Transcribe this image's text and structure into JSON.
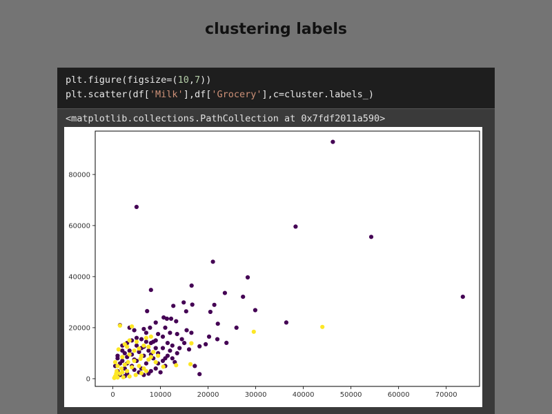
{
  "slide": {
    "title": "clustering labels"
  },
  "code": {
    "line1": {
      "a": "plt.figure(figsize=(",
      "b": "10",
      "c": ",",
      "d": "7",
      "e": "))"
    },
    "line2": {
      "a": "plt.scatter(df[",
      "b": "'Milk'",
      "c": "],df[",
      "d": "'Grocery'",
      "e": "],c=cluster.labels_)"
    }
  },
  "output": {
    "text": "<matplotlib.collections.PathCollection at 0x7fdf2011a590>"
  },
  "chart_data": {
    "type": "scatter",
    "title": "",
    "xlabel": "",
    "ylabel": "",
    "xlim": [
      -3700,
      77000
    ],
    "ylim": [
      -3000,
      97000
    ],
    "x_ticks": [
      0,
      10000,
      20000,
      30000,
      40000,
      50000,
      60000,
      70000
    ],
    "y_ticks": [
      0,
      20000,
      40000,
      60000,
      80000
    ],
    "x_tick_labels": [
      "0",
      "10000",
      "20000",
      "30000",
      "40000",
      "50000",
      "60000",
      "70000"
    ],
    "y_tick_labels": [
      "0",
      "20000",
      "40000",
      "60000",
      "80000"
    ],
    "grid": false,
    "series": [
      {
        "color": "#440154",
        "points": [
          [
            46197,
            92780
          ],
          [
            4980,
            67298
          ],
          [
            38369,
            59598
          ],
          [
            54259,
            55571
          ],
          [
            73498,
            32114
          ],
          [
            21014,
            45828
          ],
          [
            28326,
            39694
          ],
          [
            16538,
            36486
          ],
          [
            8005,
            34792
          ],
          [
            23527,
            33586
          ],
          [
            27339,
            32114
          ],
          [
            12697,
            28540
          ],
          [
            14881,
            29904
          ],
          [
            16687,
            29016
          ],
          [
            21305,
            28938
          ],
          [
            29892,
            26866
          ],
          [
            15400,
            26400
          ],
          [
            25962,
            20012
          ],
          [
            36423,
            22019
          ],
          [
            22044,
            21531
          ],
          [
            12230,
            23500
          ],
          [
            10677,
            24000
          ],
          [
            11350,
            23500
          ],
          [
            9000,
            22000
          ],
          [
            13300,
            22500
          ],
          [
            7200,
            26500
          ],
          [
            7800,
            20000
          ],
          [
            6500,
            19500
          ],
          [
            20485,
            26177
          ],
          [
            20200,
            16500
          ],
          [
            21944,
            15500
          ],
          [
            23850,
            14050
          ],
          [
            18200,
            12700
          ],
          [
            17200,
            5000
          ],
          [
            18200,
            1800
          ],
          [
            9500,
            10000
          ],
          [
            10500,
            12000
          ],
          [
            11500,
            14000
          ],
          [
            12500,
            13000
          ],
          [
            9000,
            15000
          ],
          [
            8000,
            14000
          ],
          [
            6000,
            12000
          ],
          [
            5000,
            16000
          ],
          [
            4000,
            15000
          ],
          [
            3000,
            14000
          ],
          [
            2000,
            13000
          ],
          [
            1500,
            21000
          ],
          [
            3500,
            20000
          ],
          [
            4500,
            19000
          ],
          [
            7000,
            18000
          ],
          [
            11000,
            20000
          ],
          [
            12000,
            18000
          ],
          [
            13500,
            17500
          ],
          [
            14500,
            15500
          ],
          [
            15500,
            19000
          ],
          [
            16500,
            18000
          ],
          [
            1000,
            8000
          ],
          [
            2500,
            10000
          ],
          [
            3500,
            11000
          ],
          [
            6500,
            9000
          ],
          [
            7500,
            11000
          ],
          [
            8500,
            8000
          ],
          [
            9500,
            6000
          ],
          [
            10500,
            7000
          ],
          [
            11500,
            9000
          ],
          [
            12500,
            8000
          ],
          [
            13500,
            10000
          ],
          [
            500,
            5000
          ],
          [
            1000,
            3000
          ],
          [
            1500,
            6000
          ],
          [
            2000,
            7000
          ],
          [
            2500,
            4000
          ],
          [
            3000,
            2000
          ],
          [
            4000,
            5000
          ],
          [
            5000,
            7000
          ],
          [
            6000,
            4000
          ],
          [
            7000,
            6000
          ],
          [
            8000,
            3000
          ],
          [
            9000,
            4000
          ],
          [
            10000,
            2500
          ],
          [
            11000,
            5000
          ],
          [
            3000,
            8500
          ],
          [
            4500,
            7500
          ],
          [
            5500,
            10500
          ],
          [
            6500,
            12500
          ],
          [
            14000,
            12000
          ],
          [
            15000,
            14000
          ],
          [
            16000,
            11500
          ],
          [
            19500,
            13500
          ],
          [
            9500,
            17500
          ],
          [
            10500,
            16500
          ],
          [
            12000,
            11000
          ],
          [
            13000,
            6500
          ],
          [
            1500,
            1500
          ],
          [
            2500,
            1000
          ],
          [
            5500,
            2500
          ],
          [
            6500,
            1500
          ],
          [
            7500,
            2000
          ],
          [
            4500,
            3500
          ],
          [
            8500,
            14500
          ],
          [
            5000,
            13000
          ],
          [
            6000,
            15500
          ],
          [
            7000,
            14500
          ],
          [
            4000,
            9500
          ],
          [
            3000,
            6000
          ],
          [
            2000,
            11000
          ],
          [
            1000,
            9000
          ],
          [
            11000,
            8000
          ],
          [
            9000,
            12000
          ],
          [
            8000,
            9500
          ]
        ]
      },
      {
        "color": "#fde725",
        "points": [
          [
            44000,
            20300
          ],
          [
            29600,
            18400
          ],
          [
            16500,
            13900
          ],
          [
            16300,
            5700
          ],
          [
            13300,
            5300
          ],
          [
            10600,
            4700
          ],
          [
            4000,
            20500
          ],
          [
            1200,
            11500
          ],
          [
            1500,
            20800
          ],
          [
            8000,
            16500
          ],
          [
            7000,
            16000
          ],
          [
            3000,
            12500
          ],
          [
            5500,
            11800
          ],
          [
            8500,
            10500
          ],
          [
            6000,
            9000
          ],
          [
            3500,
            9500
          ],
          [
            2000,
            8500
          ],
          [
            7500,
            7500
          ],
          [
            4500,
            7000
          ],
          [
            500,
            6500
          ],
          [
            1000,
            5000
          ],
          [
            2500,
            5500
          ],
          [
            4000,
            4500
          ],
          [
            5500,
            5000
          ],
          [
            6500,
            4000
          ],
          [
            2000,
            2500
          ],
          [
            3000,
            3000
          ],
          [
            1500,
            2000
          ],
          [
            500,
            1000
          ],
          [
            1000,
            500
          ],
          [
            2200,
            600
          ],
          [
            3500,
            900
          ],
          [
            4800,
            1500
          ],
          [
            6000,
            2200
          ],
          [
            7000,
            3000
          ],
          [
            9000,
            6500
          ],
          [
            8000,
            8500
          ],
          [
            6500,
            13000
          ],
          [
            5000,
            14500
          ],
          [
            3500,
            15000
          ],
          [
            2500,
            13500
          ],
          [
            4500,
            11000
          ],
          [
            7500,
            12500
          ],
          [
            9500,
            9000
          ],
          [
            800,
            3000
          ],
          [
            300,
            300
          ],
          [
            700,
            2000
          ],
          [
            1800,
            4000
          ],
          [
            3200,
            6500
          ],
          [
            5800,
            7800
          ]
        ]
      }
    ]
  }
}
